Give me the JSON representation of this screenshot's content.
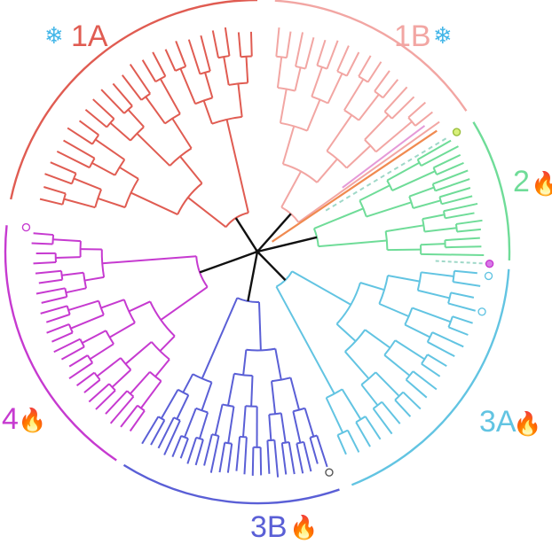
{
  "figure": {
    "clades": [
      {
        "id": "1A",
        "label": "1A",
        "color": "#e05c52",
        "icon": "snowflake-icon",
        "icon_glyph": "❄",
        "icon_color": "#43b6e8",
        "leaves": 24,
        "start_deg": 192,
        "end_deg": 270
      },
      {
        "id": "1B",
        "label": "1B",
        "color": "#f2a6a3",
        "icon": "snowflake-icon",
        "icon_glyph": "❄",
        "icon_color": "#43b6e8",
        "leaves": 17,
        "start_deg": 274,
        "end_deg": 326
      },
      {
        "id": "2",
        "label": "2",
        "color": "#6fdc98",
        "icon": "flame-icon",
        "icon_glyph": "🔥",
        "icon_color": "#d9261c",
        "leaves": 15,
        "start_deg": 329,
        "end_deg": 362
      },
      {
        "id": "3A",
        "label": "3A",
        "color": "#62c4e2",
        "icon": "flame-icon",
        "icon_glyph": "🔥",
        "icon_color": "#f08a7a",
        "leaves": 20,
        "start_deg": 4,
        "end_deg": 68
      },
      {
        "id": "3B",
        "label": "3B",
        "color": "#5a5fd6",
        "icon": "flame-icon",
        "icon_glyph": "🔥",
        "icon_color": "#d9261c",
        "leaves": 24,
        "start_deg": 71,
        "end_deg": 122
      },
      {
        "id": "4",
        "label": "4",
        "color": "#c63ad0",
        "icon": "flame-icon",
        "icon_glyph": "🔥",
        "icon_color": "#d9261c",
        "leaves": 24,
        "start_deg": 124,
        "end_deg": 186
      }
    ],
    "colors": {
      "backbone": "#111111",
      "root_node": "#aaaaaa",
      "dashed_branch": "#9fd8c8",
      "orange_branch": "#f08a50",
      "pink_branch": "#e59ad8"
    }
  }
}
